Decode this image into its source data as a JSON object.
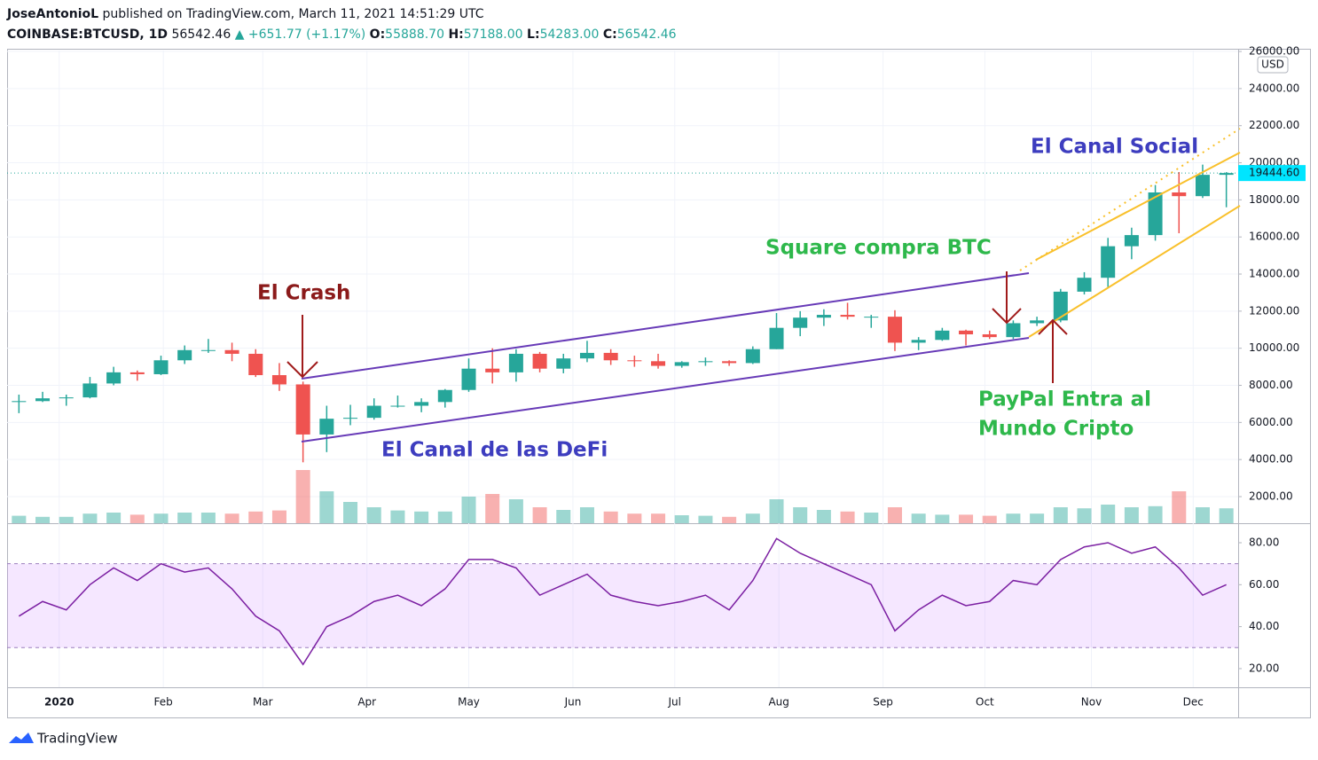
{
  "header": {
    "author": "JoseAntonioL",
    "published": "published on TradingView.com, March 11, 2021 14:51:29 UTC",
    "symbol": "COINBASE:BTCUSD, 1D",
    "last": "56542.46",
    "change": "▲ +651.77 (+1.17%)",
    "o_label": "O:",
    "o": "55888.70",
    "h_label": "H:",
    "h": "57188.00",
    "l_label": "L:",
    "l": "54283.00",
    "c_label": "C:",
    "c": "56542.46"
  },
  "annotations": {
    "crash": "El Crash",
    "square": "Square compra BTC",
    "defi": "El Canal de las DeFi",
    "social": "El Canal Social",
    "paypal_1": "PayPal Entra al",
    "paypal_2": "Mundo Cripto"
  },
  "footer": "TradingView",
  "chart_data": {
    "type": "candlestick",
    "currency": "USD",
    "xlim": [
      0,
      52
    ],
    "xticks": [
      {
        "value": 2.2,
        "label": "2020"
      },
      {
        "value": 6.6,
        "label": "Feb"
      },
      {
        "value": 10.8,
        "label": "Mar"
      },
      {
        "value": 15.2,
        "label": "Apr"
      },
      {
        "value": 19.5,
        "label": "May"
      },
      {
        "value": 23.9,
        "label": "Jun"
      },
      {
        "value": 28.2,
        "label": "Jul"
      },
      {
        "value": 32.6,
        "label": "Aug"
      },
      {
        "value": 37.0,
        "label": "Sep"
      },
      {
        "value": 41.3,
        "label": "Oct"
      },
      {
        "value": 45.8,
        "label": "Nov"
      },
      {
        "value": 50.1,
        "label": "Dec"
      }
    ],
    "ylim": [
      566,
      26050
    ],
    "yticks": [
      {
        "value": 2000,
        "label": "2000.00"
      },
      {
        "value": 4000,
        "label": "4000.00"
      },
      {
        "value": 6000,
        "label": "6000.00"
      },
      {
        "value": 8000,
        "label": "8000.00"
      },
      {
        "value": 10000,
        "label": "10000.00"
      },
      {
        "value": 12000,
        "label": "12000.00"
      },
      {
        "value": 14000,
        "label": "14000.00"
      },
      {
        "value": 16000,
        "label": "16000.00"
      },
      {
        "value": 18000,
        "label": "18000.00"
      },
      {
        "value": 20000,
        "label": "20000.00"
      },
      {
        "value": 22000,
        "label": "22000.00"
      },
      {
        "value": 24000,
        "label": "24000.00"
      },
      {
        "value": 26000,
        "label": "26000.00"
      }
    ],
    "last_price": 19444.6,
    "last_price_label": "19444.60",
    "up_color": "#26a69a",
    "down_color": "#ef5350",
    "candles": {
      "open": [
        7100,
        7150,
        7300,
        7350,
        8100,
        8700,
        8600,
        9350,
        9900,
        9900,
        9700,
        8550,
        8050,
        5350,
        6200,
        6250,
        6900,
        6900,
        7100,
        7750,
        8900,
        8700,
        9700,
        8900,
        9450,
        9750,
        9350,
        9300,
        9050,
        9250,
        9300,
        9200,
        9950,
        11100,
        11650,
        11800,
        11700,
        11700,
        10300,
        10450,
        10950,
        10750,
        10600,
        11350,
        11500,
        13050,
        13800,
        15500,
        16100,
        18400,
        18200,
        19350
      ],
      "high": [
        7500,
        7650,
        7500,
        8450,
        9000,
        8800,
        9600,
        10150,
        10500,
        10300,
        9950,
        9200,
        8200,
        6900,
        6950,
        7300,
        7450,
        7300,
        7800,
        9450,
        10000,
        9950,
        9800,
        9700,
        10400,
        9950,
        9600,
        9700,
        9300,
        9500,
        9350,
        10100,
        11900,
        12000,
        12100,
        12450,
        11800,
        12050,
        10600,
        11100,
        11000,
        10950,
        11500,
        11700,
        13200,
        14100,
        15950,
        16500,
        18800,
        19500,
        19900,
        19500
      ],
      "low": [
        6500,
        7100,
        6900,
        7300,
        8000,
        8250,
        8550,
        9150,
        9750,
        9300,
        8450,
        7700,
        3850,
        4400,
        5850,
        6150,
        6800,
        6550,
        6800,
        7650,
        8100,
        8200,
        8700,
        8650,
        9250,
        9100,
        9000,
        8900,
        8950,
        9050,
        9050,
        9150,
        9950,
        10650,
        11200,
        11550,
        11100,
        9850,
        9900,
        10400,
        10150,
        10500,
        10500,
        11200,
        11400,
        12900,
        13300,
        14800,
        15800,
        16200,
        18100,
        17600
      ],
      "close": [
        7150,
        7300,
        7350,
        8100,
        8700,
        8600,
        9350,
        9900,
        9900,
        9700,
        8550,
        8050,
        5350,
        6200,
        6250,
        6900,
        6900,
        7100,
        7750,
        8900,
        8700,
        9700,
        8900,
        9450,
        9750,
        9350,
        9300,
        9050,
        9250,
        9300,
        9200,
        9950,
        11100,
        11650,
        11800,
        11700,
        11700,
        10300,
        10450,
        10950,
        10750,
        10600,
        11350,
        11500,
        13050,
        13800,
        15500,
        16100,
        18400,
        18200,
        19350,
        19444.6
      ]
    },
    "volume": {
      "vlim": [
        0,
        100
      ],
      "values": [
        14,
        12,
        12,
        18,
        20,
        16,
        18,
        20,
        20,
        18,
        22,
        24,
        100,
        60,
        40,
        30,
        24,
        22,
        22,
        50,
        55,
        45,
        30,
        25,
        30,
        22,
        18,
        18,
        15,
        14,
        12,
        18,
        45,
        30,
        25,
        22,
        20,
        30,
        18,
        16,
        16,
        14,
        18,
        18,
        30,
        28,
        35,
        30,
        32,
        60,
        30,
        28
      ]
    },
    "rsi": {
      "ylim": [
        11.1,
        89.3
      ],
      "yticks": [
        {
          "value": 20,
          "label": "20.00"
        },
        {
          "value": 40,
          "label": "40.00"
        },
        {
          "value": 60,
          "label": "60.00"
        },
        {
          "value": 80,
          "label": "80.00"
        }
      ],
      "band": [
        30,
        70
      ],
      "color": "#7b1fa2",
      "values": [
        45,
        52,
        48,
        60,
        68,
        62,
        70,
        66,
        68,
        58,
        45,
        38,
        22,
        40,
        45,
        52,
        55,
        50,
        58,
        72,
        72,
        68,
        55,
        60,
        65,
        55,
        52,
        50,
        52,
        55,
        48,
        62,
        82,
        75,
        70,
        65,
        60,
        38,
        48,
        55,
        50,
        52,
        62,
        60,
        72,
        78,
        80,
        75,
        78,
        68,
        55,
        60
      ]
    }
  }
}
